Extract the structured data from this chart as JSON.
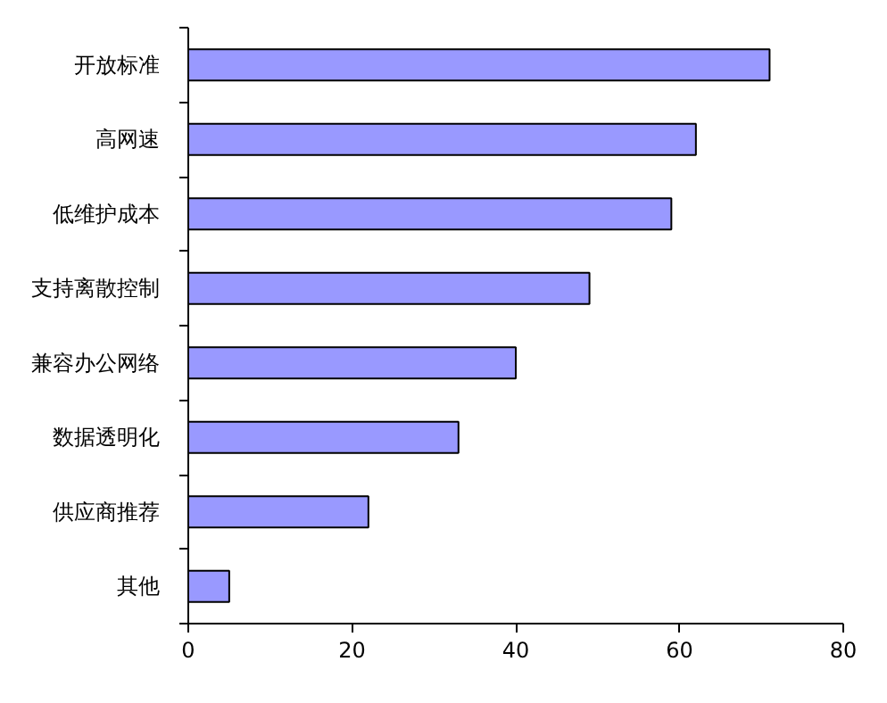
{
  "chart_data": {
    "type": "bar",
    "orientation": "horizontal",
    "categories": [
      "开放标准",
      "高网速",
      "低维护成本",
      "支持离散控制",
      "兼容办公网络",
      "数据透明化",
      "供应商推荐",
      "其他"
    ],
    "values": [
      71,
      62,
      59,
      49,
      40,
      33,
      22,
      5
    ],
    "color": "#9999ff",
    "xlim": [
      0,
      80
    ],
    "xticks": [
      0,
      20,
      40,
      60,
      80
    ],
    "grid": false
  }
}
